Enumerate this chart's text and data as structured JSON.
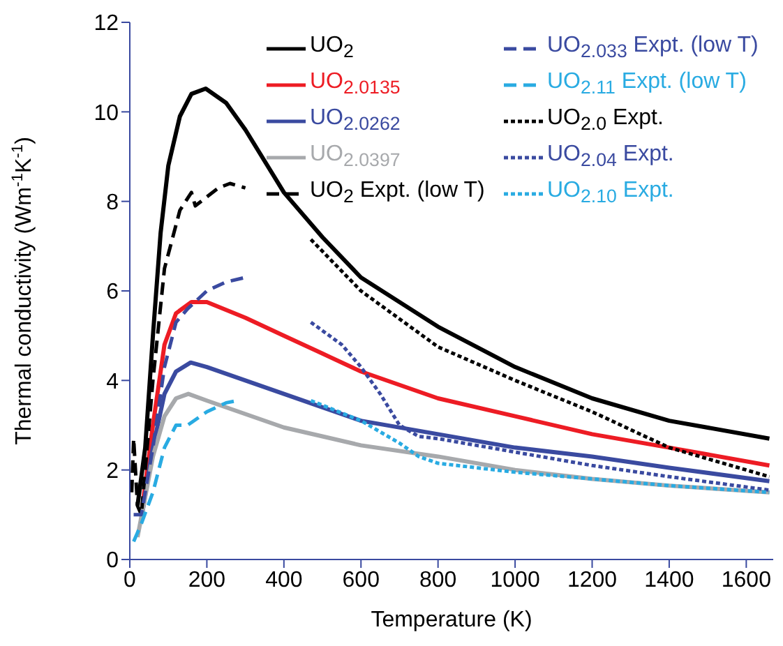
{
  "chart_data": {
    "type": "line",
    "xlabel": "Temperature (K)",
    "ylabel": "Thermal conductivity (Wm$^{-1}$K$^{-1}$)",
    "xlim": [
      0,
      1670
    ],
    "xticks": [
      0,
      200,
      400,
      600,
      800,
      1000,
      1200,
      1400,
      1600
    ],
    "ylim": [
      0,
      12
    ],
    "yticks": [
      0,
      2,
      4,
      6,
      8,
      10,
      12
    ],
    "legend": "top right",
    "grid": false,
    "series": [
      {
        "name": "UO$_{2}$",
        "color": "#000000",
        "line_style": "solid",
        "x": [
          20,
          40,
          60,
          80,
          100,
          130,
          160,
          197,
          250,
          300,
          400,
          500,
          600,
          800,
          1000,
          1200,
          1400,
          1660
        ],
        "values": [
          1.2,
          2.5,
          5,
          7.3,
          8.8,
          9.9,
          10.4,
          10.52,
          10.2,
          9.6,
          8.2,
          7.2,
          6.3,
          5.2,
          4.3,
          3.6,
          3.1,
          2.7
        ]
      },
      {
        "name": "UO$_{2.0135}$",
        "color": "#ed1c24",
        "line_style": "solid",
        "x": [
          30,
          60,
          90,
          120,
          160,
          200,
          300,
          400,
          500,
          600,
          800,
          1000,
          1200,
          1400,
          1660
        ],
        "values": [
          1.0,
          3,
          4.8,
          5.5,
          5.75,
          5.75,
          5.4,
          5.0,
          4.6,
          4.2,
          3.6,
          3.2,
          2.8,
          2.5,
          2.1
        ]
      },
      {
        "name": "UO$_{2.0262}$",
        "color": "#3a4aa0",
        "line_style": "solid",
        "x": [
          30,
          60,
          90,
          120,
          158,
          200,
          300,
          400,
          500,
          600,
          800,
          1000,
          1200,
          1400,
          1660
        ],
        "values": [
          0.9,
          2.5,
          3.7,
          4.2,
          4.4,
          4.3,
          4.0,
          3.7,
          3.4,
          3.1,
          2.8,
          2.5,
          2.3,
          2.05,
          1.75
        ]
      },
      {
        "name": "UO$_{2.0397}$",
        "color": "#a7a9ac",
        "line_style": "solid",
        "x": [
          20,
          60,
          90,
          120,
          152,
          200,
          300,
          400,
          500,
          600,
          800,
          1000,
          1200,
          1400,
          1660
        ],
        "values": [
          0.5,
          2.3,
          3.2,
          3.6,
          3.7,
          3.55,
          3.25,
          2.95,
          2.75,
          2.55,
          2.3,
          2.0,
          1.8,
          1.65,
          1.5
        ]
      },
      {
        "name": "UO$_{2}$ Expt. (low T)",
        "color": "#000000",
        "line_style": "dashed",
        "x": [
          5,
          10,
          20,
          30,
          60,
          90,
          130,
          160,
          170,
          200,
          230,
          260,
          300
        ],
        "values": [
          1.5,
          2.7,
          1.2,
          1.0,
          4,
          6.5,
          7.8,
          8.2,
          7.9,
          8.1,
          8.3,
          8.4,
          8.3
        ]
      },
      {
        "name": "UO$_{2.033}$ Expt. (low T)",
        "color": "#3a4aa0",
        "line_style": "dashed",
        "x": [
          10,
          30,
          60,
          90,
          120,
          150,
          200,
          250,
          300
        ],
        "values": [
          1.0,
          1.0,
          2.5,
          4.3,
          5.3,
          5.6,
          6.0,
          6.2,
          6.3
        ]
      },
      {
        "name": "UO$_{2.11}$ Expt. (low T)",
        "color": "#29abe2",
        "line_style": "dashed",
        "x": [
          10,
          30,
          60,
          90,
          120,
          150,
          200,
          250,
          280
        ],
        "values": [
          0.4,
          0.8,
          1.5,
          2.5,
          3.0,
          3.0,
          3.3,
          3.5,
          3.55
        ]
      },
      {
        "name": "UO$_{2.0}$ Expt.",
        "color": "#000000",
        "line_style": "dotted",
        "x": [
          470,
          600,
          800,
          1000,
          1200,
          1400,
          1660
        ],
        "values": [
          7.15,
          6.0,
          4.75,
          4.0,
          3.3,
          2.5,
          1.85
        ]
      },
      {
        "name": "UO$_{2.04}$ Expt.",
        "color": "#3a4aa0",
        "line_style": "dotted",
        "x": [
          470,
          550,
          600,
          650,
          700,
          750,
          800,
          1000,
          1200,
          1400,
          1660
        ],
        "values": [
          5.3,
          4.8,
          4.3,
          3.7,
          3.0,
          2.75,
          2.7,
          2.4,
          2.1,
          1.85,
          1.55
        ]
      },
      {
        "name": "UO$_{2.10}$ Expt.",
        "color": "#29abe2",
        "line_style": "dotted",
        "x": [
          470,
          600,
          700,
          750,
          800,
          1000,
          1200,
          1400,
          1660
        ],
        "values": [
          3.55,
          3.1,
          2.6,
          2.3,
          2.15,
          1.95,
          1.8,
          1.65,
          1.5
        ]
      }
    ]
  }
}
